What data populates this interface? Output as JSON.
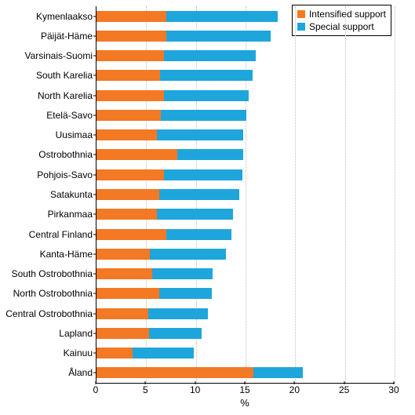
{
  "chart": {
    "type": "stacked-horizontal-bar",
    "background_color": "#ffffff",
    "grid_color": "#bfbfbf",
    "axis_color": "#000000",
    "label_fontsize": 12,
    "xlim": [
      0,
      30
    ],
    "xtick_step": 5,
    "xticks": [
      0,
      5,
      10,
      15,
      20,
      25,
      30
    ],
    "x_title": "%",
    "legend_border": "#000000",
    "legend_items": [
      {
        "label": "Intensified support",
        "color": "#f37924"
      },
      {
        "label": "Special support",
        "color": "#1ea6dc"
      }
    ],
    "series_colors": {
      "intensified": "#f37924",
      "special": "#1ea6dc"
    },
    "categories": [
      {
        "label": "Kymenlaakso",
        "intensified": 7.0,
        "special": 11.2
      },
      {
        "label": "Päijät-Häme",
        "intensified": 7.0,
        "special": 10.5
      },
      {
        "label": "Varsinais-Suomi",
        "intensified": 6.8,
        "special": 9.2
      },
      {
        "label": "South Karelia",
        "intensified": 6.4,
        "special": 9.3
      },
      {
        "label": "North Karelia",
        "intensified": 6.8,
        "special": 8.5
      },
      {
        "label": "Etelä-Savo",
        "intensified": 6.5,
        "special": 8.6
      },
      {
        "label": "Uusimaa",
        "intensified": 6.1,
        "special": 8.7
      },
      {
        "label": "Ostrobothnia",
        "intensified": 8.1,
        "special": 6.7
      },
      {
        "label": "Pohjois-Savo",
        "intensified": 6.8,
        "special": 7.9
      },
      {
        "label": "Satakunta",
        "intensified": 6.3,
        "special": 8.1
      },
      {
        "label": "Pirkanmaa",
        "intensified": 6.1,
        "special": 7.6
      },
      {
        "label": "Central Finland",
        "intensified": 7.0,
        "special": 6.6
      },
      {
        "label": "Kanta-Häme",
        "intensified": 5.4,
        "special": 7.6
      },
      {
        "label": "South Ostrobothnia",
        "intensified": 5.6,
        "special": 6.1
      },
      {
        "label": "North Ostrobothnia",
        "intensified": 6.3,
        "special": 5.3
      },
      {
        "label": "Central Ostrobothnia",
        "intensified": 5.2,
        "special": 6.0
      },
      {
        "label": "Lapland",
        "intensified": 5.3,
        "special": 5.3
      },
      {
        "label": "Kainuu",
        "intensified": 3.6,
        "special": 6.2
      },
      {
        "label": "Åland",
        "intensified": 15.8,
        "special": 5.0
      }
    ]
  }
}
